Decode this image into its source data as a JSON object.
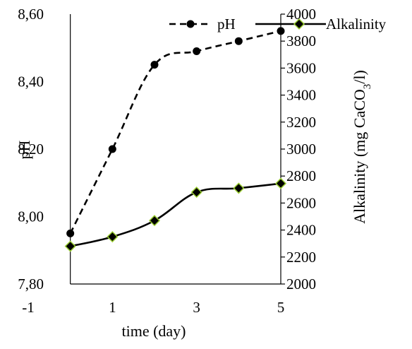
{
  "chart_data": {
    "type": "line",
    "xlabel": "time (day)",
    "x_ticks": [
      "-1",
      "1",
      "3",
      "5"
    ],
    "xlim": [
      -1,
      5
    ],
    "y_left": {
      "label": "pH",
      "ylim": [
        7.8,
        8.6
      ],
      "ticks": [
        "7,80",
        "8,00",
        "8,20",
        "8,40",
        "8,60"
      ]
    },
    "y_right": {
      "label_prefix": "Alkalinity (mg CaCO",
      "label_sub": "3",
      "label_suffix": "/l)",
      "ylim": [
        2000,
        4000
      ],
      "ticks": [
        "2000",
        "2200",
        "2400",
        "2600",
        "2800",
        "3000",
        "3200",
        "3400",
        "3600",
        "3800",
        "4000"
      ]
    },
    "series": [
      {
        "name": "pH",
        "axis": "left",
        "line_style": "dashed",
        "marker": "circle",
        "color": "#000000",
        "x": [
          0,
          1,
          2,
          3,
          4,
          5
        ],
        "values": [
          7.95,
          8.2,
          8.45,
          8.49,
          8.52,
          8.55
        ]
      },
      {
        "name": "Alkalinity",
        "axis": "right",
        "line_style": "solid",
        "marker": "diamond",
        "color": "#000000",
        "marker_edge": "#9acd32",
        "x": [
          0,
          1,
          2,
          3,
          4,
          5
        ],
        "values": [
          2280,
          2350,
          2470,
          2680,
          2710,
          2745
        ]
      }
    ],
    "legend_position": "top-right",
    "grid": false
  }
}
